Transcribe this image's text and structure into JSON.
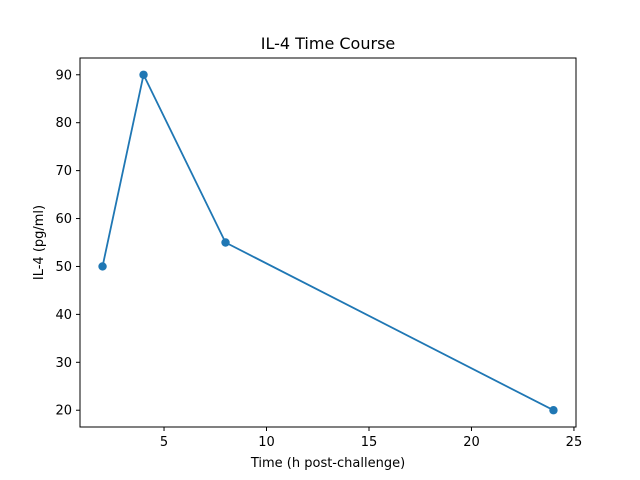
{
  "chart_data": {
    "type": "line",
    "title": "IL-4 Time Course",
    "xlabel": "Time (h post-challenge)",
    "ylabel": "IL-4 (pg/ml)",
    "x": [
      2,
      4,
      8,
      24
    ],
    "series": [
      {
        "values": [
          50,
          90,
          55,
          20
        ]
      }
    ],
    "xlim": [
      0.9,
      25.1
    ],
    "ylim": [
      16.5,
      93.5
    ],
    "xticks": [
      5,
      10,
      15,
      20,
      25
    ],
    "yticks": [
      20,
      30,
      40,
      50,
      60,
      70,
      80,
      90
    ],
    "grid": false,
    "markers": true,
    "line_color": "#1f77b4"
  }
}
